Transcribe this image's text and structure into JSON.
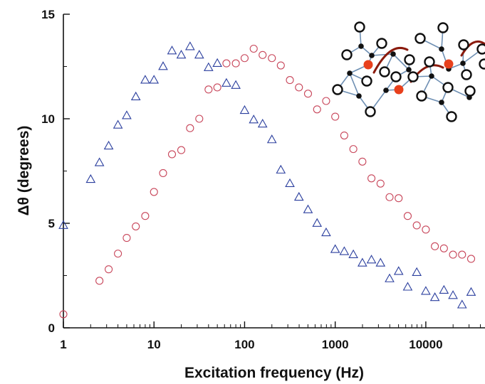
{
  "chart_data": {
    "type": "scatter",
    "title": "",
    "xlabel": "Excitation frequency (Hz)",
    "ylabel": "Δθ (degrees)",
    "x_scale": "log",
    "xlim": [
      1,
      45000
    ],
    "ylim": [
      0,
      15
    ],
    "x_ticks": [
      {
        "value": 1,
        "label": "1"
      },
      {
        "value": 10,
        "label": "10"
      },
      {
        "value": 100,
        "label": "100"
      },
      {
        "value": 1000,
        "label": "1000"
      },
      {
        "value": 10000,
        "label": "10000"
      }
    ],
    "y_ticks": [
      {
        "value": 0,
        "label": "0"
      },
      {
        "value": 5,
        "label": "5"
      },
      {
        "value": 10,
        "label": "10"
      },
      {
        "value": 15,
        "label": "15"
      }
    ],
    "grid": false,
    "legend": "none",
    "series": [
      {
        "marker": "triangle",
        "color": "#2b3f9e",
        "points": [
          [
            1,
            4.9
          ],
          [
            2,
            7.1
          ],
          [
            2.5,
            7.9
          ],
          [
            3.16,
            8.7
          ],
          [
            4,
            9.7
          ],
          [
            5,
            10.15
          ],
          [
            6.3,
            11.05
          ],
          [
            8,
            11.85
          ],
          [
            10,
            11.85
          ],
          [
            12.6,
            12.5
          ],
          [
            15.8,
            13.25
          ],
          [
            20,
            13.05
          ],
          [
            25,
            13.45
          ],
          [
            31.6,
            13.05
          ],
          [
            40,
            12.45
          ],
          [
            50,
            12.65
          ],
          [
            63,
            11.7
          ],
          [
            80,
            11.6
          ],
          [
            100,
            10.4
          ],
          [
            126,
            9.95
          ],
          [
            158,
            9.75
          ],
          [
            200,
            9.0
          ],
          [
            251,
            7.55
          ],
          [
            316,
            6.9
          ],
          [
            398,
            6.25
          ],
          [
            501,
            5.65
          ],
          [
            631,
            5.0
          ],
          [
            794,
            4.55
          ],
          [
            1000,
            3.75
          ],
          [
            1259,
            3.65
          ],
          [
            1585,
            3.5
          ],
          [
            1995,
            3.1
          ],
          [
            2512,
            3.25
          ],
          [
            3162,
            3.1
          ],
          [
            3981,
            2.35
          ],
          [
            5012,
            2.7
          ],
          [
            6310,
            1.95
          ],
          [
            7943,
            2.65
          ],
          [
            10000,
            1.75
          ],
          [
            12589,
            1.45
          ],
          [
            15849,
            1.8
          ],
          [
            19953,
            1.55
          ],
          [
            25119,
            1.1
          ],
          [
            31623,
            1.7
          ]
        ]
      },
      {
        "marker": "circle",
        "color": "#c8465a",
        "points": [
          [
            1,
            0.65
          ],
          [
            2.5,
            2.25
          ],
          [
            3.16,
            2.8
          ],
          [
            4,
            3.55
          ],
          [
            5,
            4.3
          ],
          [
            6.3,
            4.85
          ],
          [
            8,
            5.35
          ],
          [
            10,
            6.5
          ],
          [
            12.6,
            7.4
          ],
          [
            15.8,
            8.3
          ],
          [
            20,
            8.5
          ],
          [
            25,
            9.55
          ],
          [
            31.6,
            10.0
          ],
          [
            40,
            11.4
          ],
          [
            50,
            11.5
          ],
          [
            63,
            12.65
          ],
          [
            80,
            12.65
          ],
          [
            100,
            12.9
          ],
          [
            126,
            13.35
          ],
          [
            158,
            13.05
          ],
          [
            200,
            12.9
          ],
          [
            251,
            12.55
          ],
          [
            316,
            11.85
          ],
          [
            398,
            11.5
          ],
          [
            501,
            11.2
          ],
          [
            631,
            10.45
          ],
          [
            794,
            10.85
          ],
          [
            1000,
            10.1
          ],
          [
            1259,
            9.2
          ],
          [
            1585,
            8.55
          ],
          [
            1995,
            7.95
          ],
          [
            2512,
            7.15
          ],
          [
            3162,
            6.9
          ],
          [
            3981,
            6.25
          ],
          [
            5012,
            6.2
          ],
          [
            6310,
            5.35
          ],
          [
            7943,
            4.9
          ],
          [
            10000,
            4.7
          ],
          [
            12589,
            3.9
          ],
          [
            15849,
            3.8
          ],
          [
            19953,
            3.5
          ],
          [
            25119,
            3.5
          ],
          [
            31623,
            3.3
          ]
        ]
      }
    ]
  },
  "inset": {
    "colors": {
      "bond": "#6e8fb3",
      "open_node_stroke": "#111111",
      "filled_node": "#111111",
      "red_node": "#e8401c",
      "arrow": "#8a1a0c"
    }
  }
}
